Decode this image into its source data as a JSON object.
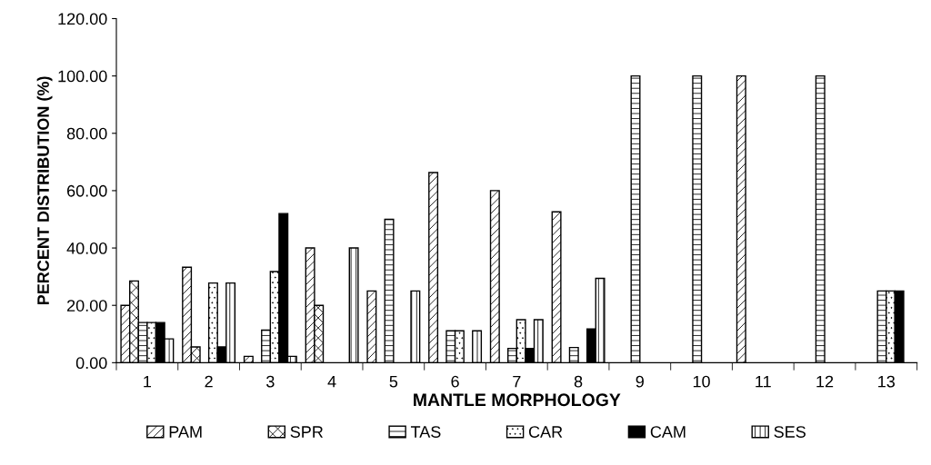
{
  "chart_data": {
    "type": "bar",
    "xlabel": "MANTLE MORPHOLOGY",
    "ylabel": "PERCENT DISTRIBUTION (%)",
    "categories": [
      "1",
      "2",
      "3",
      "4",
      "5",
      "6",
      "7",
      "8",
      "9",
      "10",
      "11",
      "12",
      "13"
    ],
    "series": [
      {
        "name": "PAM",
        "values": [
          20,
          33.3,
          2.2,
          40,
          25,
          66.3,
          60,
          52.6,
          null,
          null,
          100,
          null,
          null
        ]
      },
      {
        "name": "SPR",
        "values": [
          28.5,
          5.5,
          null,
          20,
          null,
          null,
          null,
          null,
          null,
          null,
          null,
          null,
          null
        ]
      },
      {
        "name": "TAS",
        "values": [
          14,
          null,
          11.4,
          null,
          50,
          11.1,
          5,
          5.3,
          100,
          100,
          null,
          100,
          25
        ]
      },
      {
        "name": "CAR",
        "values": [
          14,
          27.8,
          31.8,
          null,
          null,
          11.1,
          15,
          null,
          null,
          null,
          null,
          null,
          25
        ]
      },
      {
        "name": "CAM",
        "values": [
          14,
          5.5,
          52,
          null,
          null,
          null,
          5,
          11.8,
          null,
          null,
          null,
          null,
          25
        ]
      },
      {
        "name": "SES",
        "values": [
          8.3,
          27.8,
          2.2,
          40,
          25,
          11.1,
          15,
          29.4,
          null,
          null,
          null,
          null,
          null
        ]
      }
    ],
    "ylim": [
      0,
      120
    ],
    "yticks": [
      {
        "value": 0,
        "label": "0.00"
      },
      {
        "value": 20,
        "label": "20.00"
      },
      {
        "value": 40,
        "label": "40.00"
      },
      {
        "value": 60,
        "label": "60.00"
      },
      {
        "value": 80,
        "label": "80.00"
      },
      {
        "value": 100,
        "label": "100.00"
      },
      {
        "value": 120,
        "label": "120.00"
      }
    ],
    "grid": false,
    "legend": "bottom"
  }
}
